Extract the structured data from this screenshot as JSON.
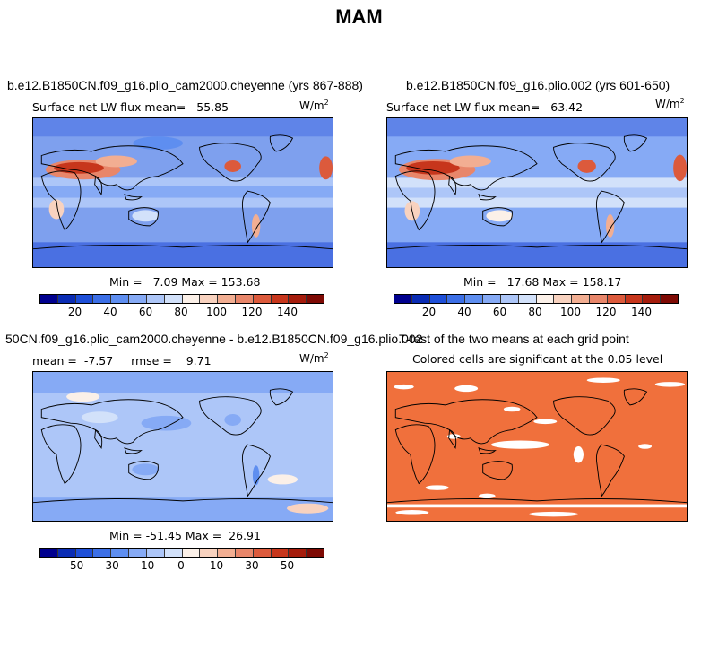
{
  "season": "MAM",
  "panels": {
    "p1": {
      "title": "b.e12.B1850CN.f09_g16.plio_cam2000.cheyenne (yrs 867-888)",
      "variable_label": "Surface net LW flux mean=",
      "mean_value": "55.85",
      "units_base": "W/m",
      "units_exp": "2",
      "min_label": "Min =",
      "min_value": "7.09",
      "max_label": "Max =",
      "max_value": "153.68"
    },
    "p2": {
      "title": "b.e12.B1850CN.f09_g16.plio.002 (yrs 601-650)",
      "variable_label": "Surface net LW flux mean=",
      "mean_value": "63.42",
      "units_base": "W/m",
      "units_exp": "2",
      "min_label": "Min =",
      "min_value": "17.68",
      "max_label": "Max =",
      "max_value": "158.17"
    },
    "p3": {
      "title": "50CN.f09_g16.plio_cam2000.cheyenne - b.e12.B1850CN.f09_g16.plio.002",
      "mean_label": "mean =",
      "mean_value": "-7.57",
      "rmse_label": "rmse =",
      "rmse_value": "9.71",
      "units_base": "W/m",
      "units_exp": "2",
      "min_label": "Min =",
      "min_value": "-51.45",
      "max_label": "Max =",
      "max_value": "26.91"
    },
    "p4": {
      "title": "T-test of the two means at each grid point",
      "subtitle": "Colored cells are significant at the 0.05 level",
      "significant_color": "#f0703c"
    }
  },
  "colorbar_abs": {
    "ticks": [
      "20",
      "40",
      "60",
      "80",
      "100",
      "120",
      "140"
    ],
    "colors": [
      "#00008e",
      "#0a2cb4",
      "#1e4fd8",
      "#3c6fe6",
      "#5e8ef0",
      "#86aaf5",
      "#adc6f8",
      "#d2e1fa",
      "#fbf0e8",
      "#f8d2bf",
      "#f2ae92",
      "#e8866a",
      "#dc5a3c",
      "#c7361c",
      "#a51c0c",
      "#7e0a04"
    ]
  },
  "colorbar_diff": {
    "ticks": [
      "-50",
      "-30",
      "-10",
      "0",
      "10",
      "30",
      "50"
    ],
    "colors": [
      "#00008e",
      "#0a2cb4",
      "#1e4fd8",
      "#3c6fe6",
      "#5e8ef0",
      "#86aaf5",
      "#adc6f8",
      "#d2e1fa",
      "#fbf0e8",
      "#f8d2bf",
      "#f2ae92",
      "#e8866a",
      "#dc5a3c",
      "#c7361c",
      "#a51c0c",
      "#7e0a04"
    ]
  }
}
